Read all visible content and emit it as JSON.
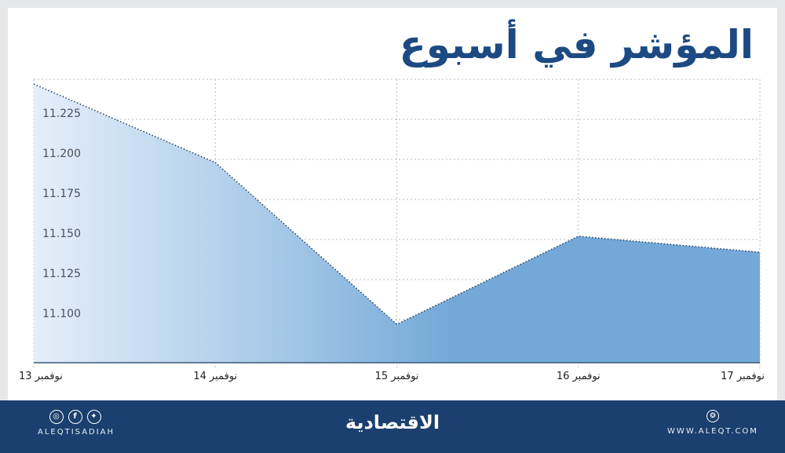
{
  "header": {
    "title": "المؤشر في أسبوع"
  },
  "colors": {
    "title": "#1d4a82",
    "area_fill": "#73a8d8",
    "area_fade": "#e4eefa",
    "line": "#2f4a66",
    "footer_bg": "#1b3f6e",
    "frame_bg": "#e6e7e8"
  },
  "chart_data": {
    "type": "area",
    "title": "المؤشر في أسبوع",
    "categories": [
      "13 نوفمبر",
      "14 نوفمبر",
      "15 نوفمبر",
      "16 نوفمبر",
      "17 نوفمبر"
    ],
    "values": [
      11247,
      11198,
      11097,
      11152,
      11142
    ],
    "y_tick_labels": [
      "11.225",
      "11.200",
      "11.175",
      "11.150",
      "11.125",
      "11.100"
    ],
    "y_ticks": [
      11225,
      11200,
      11175,
      11150,
      11125,
      11100
    ],
    "ylim": [
      11074,
      11250
    ],
    "xlabel": "",
    "ylabel": "",
    "grid": true,
    "legend": null
  },
  "footer": {
    "social_icons": [
      "instagram-icon",
      "facebook-icon",
      "twitter-icon"
    ],
    "social_glyphs": [
      "◎",
      "f",
      "✦"
    ],
    "social_handle": "ALEQTISADIAH",
    "logo_text": "الاقتصادية",
    "website_icon": "globe-icon",
    "website_glyph": "❂",
    "website": "WWW.ALEQT.COM"
  }
}
